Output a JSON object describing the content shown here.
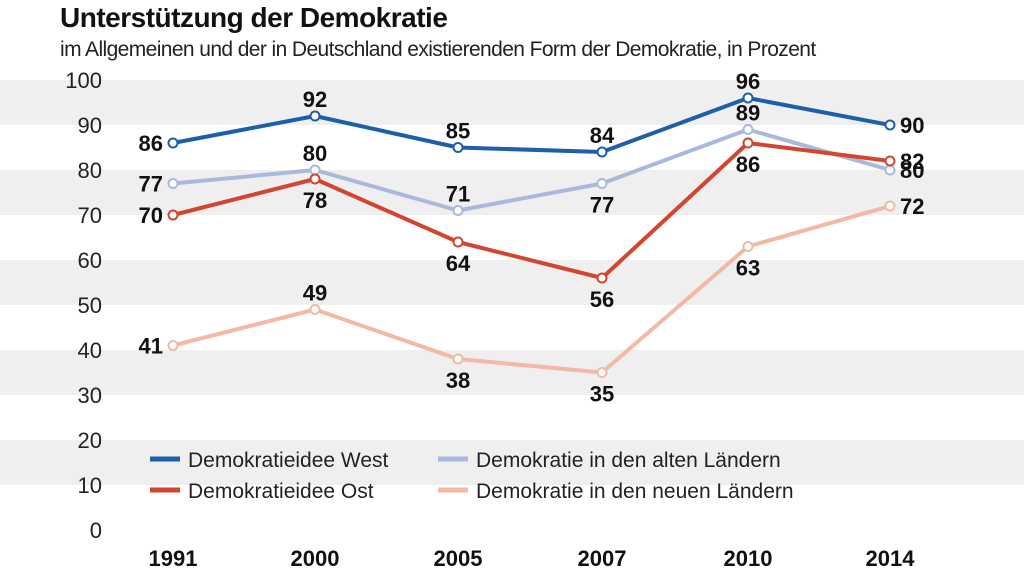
{
  "chart_data": {
    "type": "line",
    "title": "Unterstützung der Demokratie",
    "subtitle": "im Allgemeinen und der in Deutschland existierenden Form der Demokratie, in Prozent",
    "categories": [
      "1991",
      "2000",
      "2005",
      "2007",
      "2010",
      "2014"
    ],
    "ylim": [
      0,
      100
    ],
    "yticks": [
      0,
      10,
      20,
      30,
      40,
      50,
      60,
      70,
      80,
      90,
      100
    ],
    "grid": "alternating horizontal bands",
    "legend_position": "lower-center",
    "series": [
      {
        "name": "Demokratieidee West",
        "color": "#1f5fa8",
        "values": [
          86,
          92,
          85,
          84,
          96,
          90
        ],
        "label_pos": [
          "left",
          "above",
          "above",
          "above",
          "above",
          "right"
        ]
      },
      {
        "name": "Demokratie in den alten Ländern",
        "color": "#a9b9de",
        "values": [
          77,
          80,
          71,
          77,
          89,
          80
        ],
        "label_pos": [
          "left",
          "above",
          "above",
          "below",
          "above",
          "right"
        ]
      },
      {
        "name": "Demokratieidee Ost",
        "color": "#d2462f",
        "values": [
          70,
          78,
          64,
          56,
          86,
          82
        ],
        "label_pos": [
          "left",
          "below",
          "below",
          "below",
          "below",
          "right"
        ]
      },
      {
        "name": "Demokratie in den neuen Ländern",
        "color": "#f2b9a5",
        "values": [
          41,
          49,
          38,
          35,
          63,
          72
        ],
        "label_pos": [
          "left",
          "above",
          "below",
          "below",
          "below",
          "right"
        ]
      }
    ]
  }
}
